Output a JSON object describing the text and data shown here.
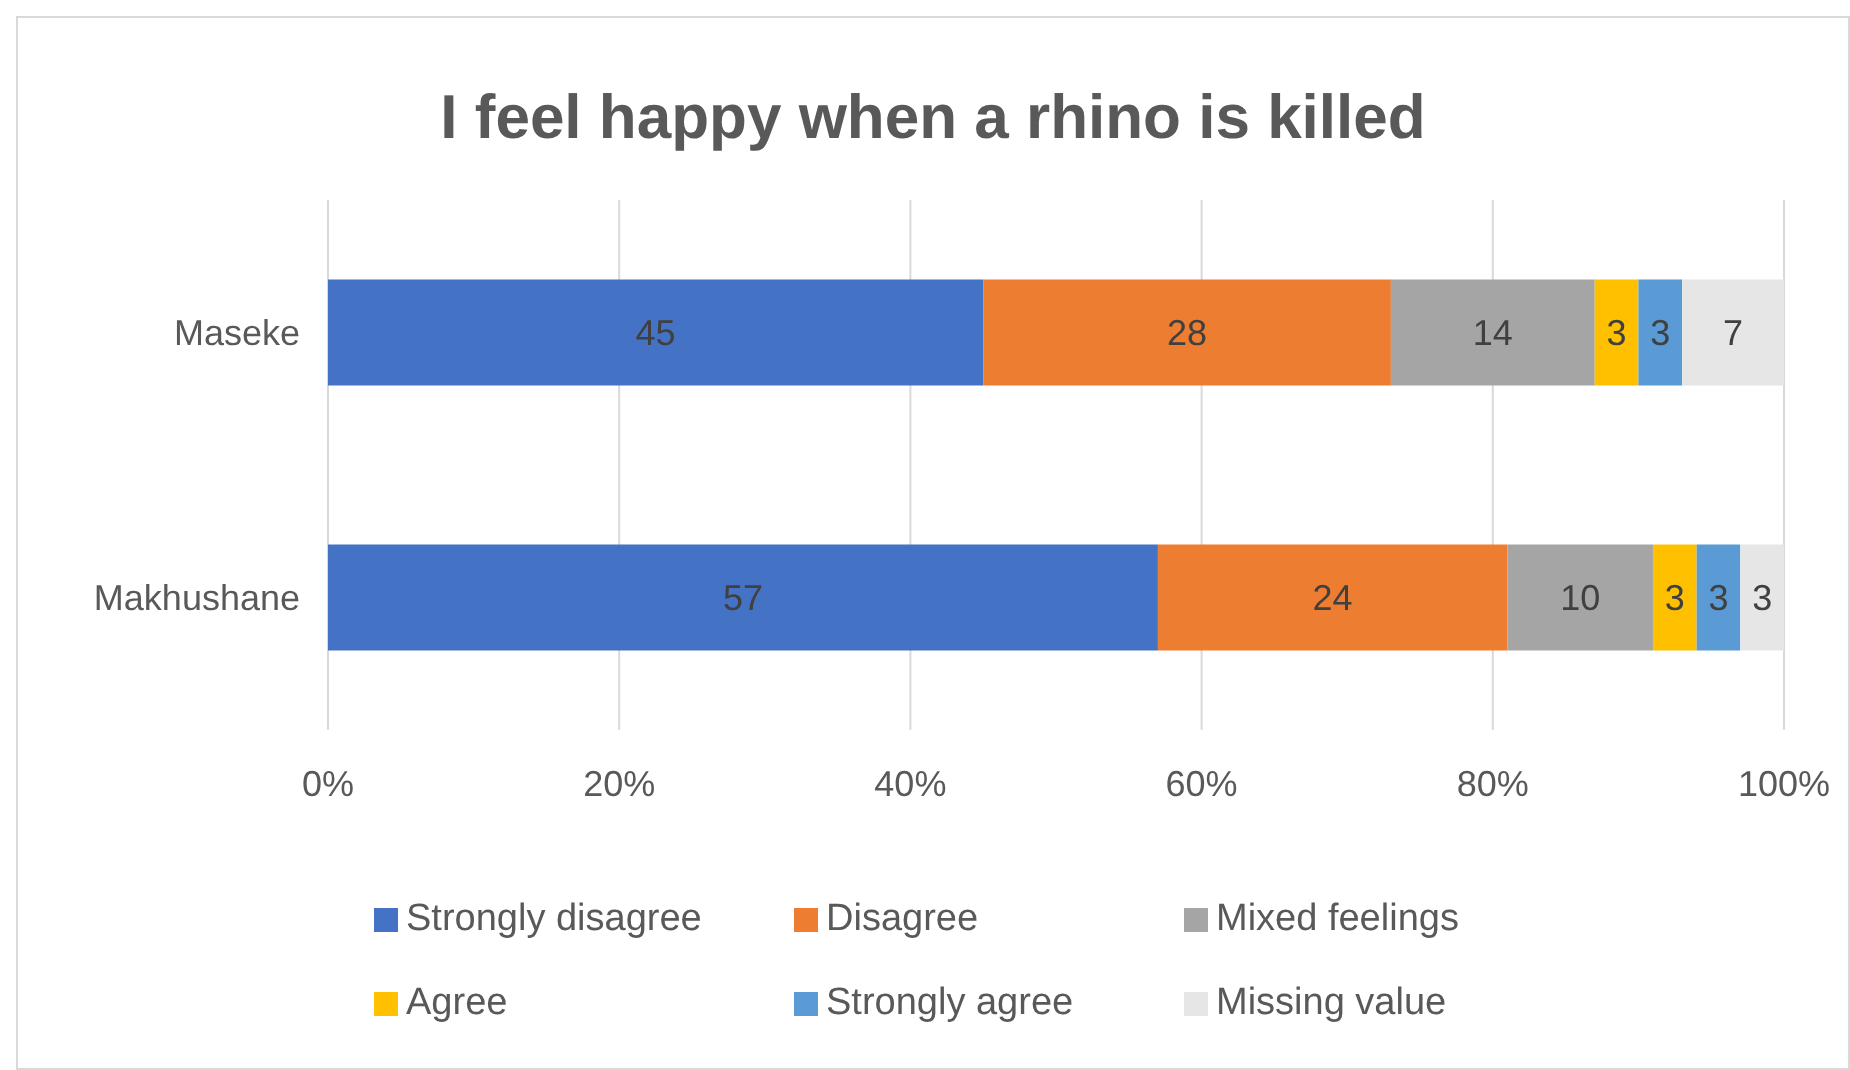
{
  "chart_data": {
    "type": "bar",
    "orientation": "horizontal",
    "stacked": true,
    "title": "I feel happy when a rhino is killed",
    "categories": [
      "Maseke",
      "Makhushane"
    ],
    "series": [
      {
        "name": "Strongly disagree",
        "color": "#4472c4",
        "values": [
          45,
          57
        ]
      },
      {
        "name": "Disagree",
        "color": "#ed7d31",
        "values": [
          28,
          24
        ]
      },
      {
        "name": "Mixed feelings",
        "color": "#a5a5a5",
        "values": [
          14,
          10
        ]
      },
      {
        "name": "Agree",
        "color": "#ffc000",
        "values": [
          3,
          3
        ]
      },
      {
        "name": "Strongly agree",
        "color": "#5b9bd5",
        "values": [
          3,
          3
        ]
      },
      {
        "name": "Missing value",
        "color": "#e7e6e6",
        "values": [
          7,
          3
        ]
      }
    ],
    "xlim": [
      0,
      100
    ],
    "xticks": [
      {
        "value": 0,
        "label": "0%"
      },
      {
        "value": 20,
        "label": "20%"
      },
      {
        "value": 40,
        "label": "40%"
      },
      {
        "value": 60,
        "label": "60%"
      },
      {
        "value": 80,
        "label": "80%"
      },
      {
        "value": 100,
        "label": "100%"
      }
    ],
    "grid": "x",
    "legend": "bottom",
    "data_labels": true
  }
}
